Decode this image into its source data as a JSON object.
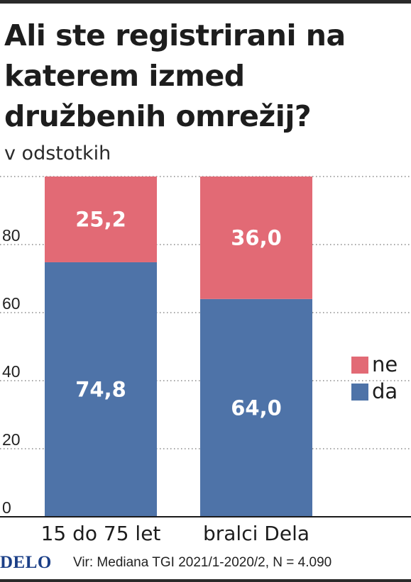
{
  "title": "Ali ste registrirani na katerem izmed družbenih omrežij?",
  "subtitle": "v odstotkih",
  "chart_data": {
    "type": "bar",
    "stacked": true,
    "categories": [
      "15 do 75 let",
      "bralci Dela"
    ],
    "series": [
      {
        "name": "da",
        "values": [
          74.8,
          64.0
        ],
        "labels": [
          "74,8",
          "64,0"
        ],
        "color": "#4e73a8"
      },
      {
        "name": "ne",
        "values": [
          25.2,
          36.0
        ],
        "labels": [
          "25,2",
          "36,0"
        ],
        "color": "#e26a75"
      }
    ],
    "yticks": [
      0,
      20,
      40,
      60,
      80
    ],
    "ylim": [
      0,
      100
    ],
    "grid": "dotted",
    "legend_position": "right"
  },
  "footer": {
    "brand": "DELO",
    "source": "Vir: Mediana TGI 2021/1-2020/2,  N = 4.090"
  }
}
